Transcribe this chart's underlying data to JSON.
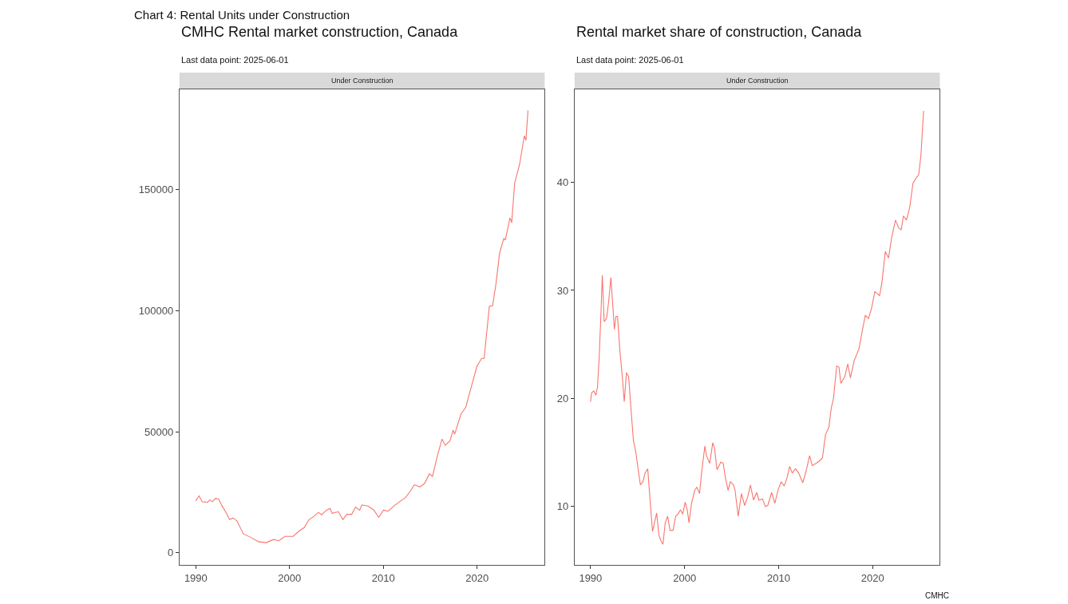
{
  "chart_data": [
    {
      "type": "line",
      "title": "CMHC Rental market construction, Canada",
      "subtitle": "Last data point: 2025-06-01",
      "annotations": [
        "Chart 4: Rental Units under Construction",
        "Under Construction"
      ],
      "grid": false,
      "xlim": [
        1988.25,
        2027.2
      ],
      "ylim": [
        -5000,
        191500
      ],
      "xticks": [
        1990,
        2000,
        2010,
        2020
      ],
      "yticks": [
        0,
        50000,
        100000,
        150000
      ],
      "series": [
        {
          "color": "#f8766d",
          "x": [
            1990.0,
            1990.34,
            1990.68,
            1991.25,
            1991.5,
            1991.76,
            1992.1,
            1992.43,
            1992.77,
            1993.28,
            1993.6,
            1993.95,
            1994.4,
            1995.07,
            1995.8,
            1996.66,
            1997.5,
            1998.3,
            1998.85,
            1999.5,
            2000.37,
            2001.05,
            2001.55,
            2002.06,
            2002.57,
            2003.07,
            2003.41,
            2003.92,
            2004.32,
            2004.53,
            2005.2,
            2005.68,
            2006.1,
            2006.62,
            2007.03,
            2007.47,
            2007.7,
            2008.38,
            2009.0,
            2009.5,
            2010.0,
            2010.5,
            2011.2,
            2011.86,
            2012.36,
            2012.87,
            2013.3,
            2013.9,
            2014.4,
            2014.9,
            2015.24,
            2015.74,
            2016.25,
            2016.6,
            2017.1,
            2017.43,
            2017.6,
            2018.28,
            2018.78,
            2019.46,
            2019.97,
            2020.47,
            2020.74,
            2021.3,
            2021.65,
            2022.0,
            2022.4,
            2022.84,
            2023.0,
            2023.5,
            2023.68,
            2024.0,
            2024.53,
            2025.03,
            2025.2,
            2025.42
          ],
          "values": [
            21500,
            23500,
            21100,
            20900,
            21900,
            21100,
            22500,
            22200,
            19600,
            16300,
            13700,
            14400,
            13100,
            7800,
            6500,
            4600,
            4200,
            5500,
            5000,
            6800,
            6800,
            9100,
            10400,
            13700,
            15000,
            16700,
            15700,
            17600,
            18300,
            16300,
            17000,
            13700,
            15900,
            15900,
            18900,
            17600,
            19800,
            19300,
            17600,
            14600,
            17600,
            17200,
            19600,
            21500,
            22800,
            25500,
            28100,
            27200,
            28700,
            32600,
            31600,
            39800,
            47000,
            44400,
            46300,
            50700,
            49000,
            57400,
            60100,
            69800,
            77000,
            80300,
            80300,
            101800,
            102100,
            111000,
            124000,
            129900,
            129200,
            138400,
            136400,
            152700,
            160600,
            172300,
            170400,
            182800
          ]
        }
      ]
    },
    {
      "type": "line",
      "title": "Rental market share of construction, Canada",
      "subtitle": "Last data point: 2025-06-01",
      "annotations": [
        "Under Construction",
        "CMHC"
      ],
      "grid": false,
      "xlim": [
        1988.3,
        2027.15
      ],
      "ylim": [
        4.6,
        48.6
      ],
      "xticks": [
        1990,
        2000,
        2010,
        2020
      ],
      "yticks": [
        10,
        20,
        30,
        40
      ],
      "series": [
        {
          "color": "#f8766d",
          "x": [
            1990.0,
            1990.1,
            1990.34,
            1990.57,
            1990.74,
            1990.9,
            1991.08,
            1991.25,
            1991.45,
            1991.7,
            1991.93,
            1992.16,
            1992.36,
            1992.53,
            1992.7,
            1992.87,
            1993.1,
            1993.38,
            1993.58,
            1993.82,
            1994.05,
            1994.32,
            1994.56,
            1994.8,
            1995.07,
            1995.3,
            1995.57,
            1995.8,
            1996.08,
            1996.25,
            1996.59,
            1997.03,
            1997.26,
            1997.5,
            1997.7,
            1997.94,
            1998.2,
            1998.45,
            1998.78,
            1999.05,
            1999.3,
            1999.56,
            1999.8,
            2000.07,
            2000.3,
            2000.47,
            2000.74,
            2001.08,
            2001.3,
            2001.59,
            2001.82,
            2002.16,
            2002.33,
            2002.67,
            2003.0,
            2003.18,
            2003.45,
            2003.85,
            2004.1,
            2004.36,
            2004.63,
            2004.86,
            2005.2,
            2005.37,
            2005.7,
            2006.05,
            2006.39,
            2006.72,
            2007.0,
            2007.33,
            2007.67,
            2007.9,
            2008.3,
            2008.58,
            2008.85,
            2009.26,
            2009.6,
            2009.93,
            2010.27,
            2010.6,
            2010.88,
            2011.18,
            2011.45,
            2011.8,
            2012.13,
            2012.57,
            2012.9,
            2013.3,
            2013.58,
            2013.99,
            2014.32,
            2014.66,
            2015.0,
            2015.34,
            2015.6,
            2015.84,
            2016.18,
            2016.42,
            2016.62,
            2017.03,
            2017.36,
            2017.64,
            2018.04,
            2018.55,
            2018.89,
            2019.22,
            2019.56,
            2019.9,
            2020.24,
            2020.74,
            2021.0,
            2021.35,
            2021.69,
            2022.03,
            2022.43,
            2022.77,
            2023.04,
            2023.28,
            2023.6,
            2023.95,
            2024.29,
            2024.63,
            2024.9,
            2025.14,
            2025.42
          ],
          "values": [
            19.7,
            20.5,
            20.7,
            20.3,
            21.1,
            23.5,
            27.3,
            31.4,
            27.1,
            27.4,
            29.0,
            31.2,
            28.7,
            26.4,
            27.6,
            27.6,
            24.6,
            22.0,
            19.7,
            22.4,
            22.0,
            18.8,
            16.1,
            15.1,
            13.4,
            12.0,
            12.3,
            13.1,
            13.5,
            11.5,
            7.7,
            9.4,
            7.4,
            6.8,
            6.5,
            8.5,
            9.1,
            7.8,
            7.8,
            9.1,
            9.3,
            9.7,
            9.3,
            10.4,
            9.6,
            8.5,
            10.3,
            11.5,
            11.8,
            11.2,
            13.2,
            15.6,
            14.7,
            14.0,
            15.9,
            15.4,
            13.4,
            14.1,
            14.0,
            12.6,
            11.5,
            12.3,
            12.0,
            11.5,
            9.1,
            11.2,
            10.1,
            10.9,
            12.0,
            10.6,
            11.3,
            10.6,
            10.7,
            10.0,
            10.1,
            11.3,
            10.3,
            11.5,
            12.3,
            11.9,
            12.6,
            13.7,
            13.1,
            13.5,
            13.1,
            12.2,
            13.2,
            14.7,
            13.8,
            14.0,
            14.2,
            14.5,
            16.7,
            17.3,
            19.1,
            20.0,
            23.0,
            22.9,
            21.4,
            22.0,
            23.2,
            21.9,
            23.5,
            24.6,
            26.2,
            27.7,
            27.4,
            28.4,
            29.9,
            29.5,
            30.8,
            33.6,
            33.0,
            34.9,
            36.5,
            35.8,
            35.6,
            36.9,
            36.5,
            37.7,
            39.9,
            40.4,
            40.7,
            42.5,
            46.6
          ]
        }
      ]
    }
  ]
}
